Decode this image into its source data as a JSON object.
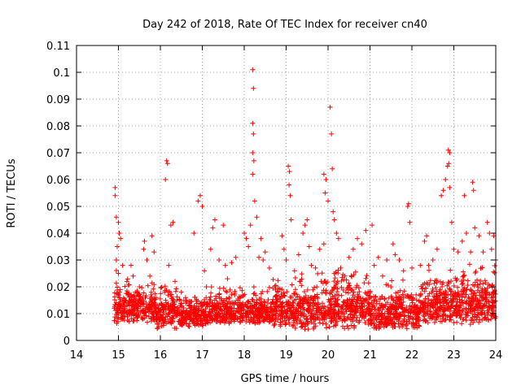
{
  "chart_data": {
    "type": "scatter",
    "title": "Day 242 of 2018, Rate Of TEC Index for receiver cn40",
    "xlabel": "GPS time / hours",
    "ylabel": "ROTI / TECUs",
    "xlim": [
      14,
      24
    ],
    "ylim": [
      0,
      0.11
    ],
    "xticks": [
      "14",
      "15",
      "16",
      "17",
      "18",
      "19",
      "20",
      "21",
      "22",
      "23",
      "24"
    ],
    "yticks": [
      "0",
      "0.01",
      "0.02",
      "0.03",
      "0.04",
      "0.05",
      "0.06",
      "0.07",
      "0.08",
      "0.09",
      "0.1",
      "0.11"
    ],
    "grid": true,
    "marker": "+",
    "series": [
      {
        "color": "#ff0000",
        "points": [
          [
            14.92,
            0.057
          ],
          [
            14.92,
            0.054
          ],
          [
            14.95,
            0.046
          ],
          [
            15.0,
            0.044
          ],
          [
            15.02,
            0.04
          ],
          [
            14.97,
            0.035
          ],
          [
            15.05,
            0.038
          ],
          [
            14.95,
            0.03
          ],
          [
            15.1,
            0.028
          ],
          [
            15.0,
            0.025
          ],
          [
            15.03,
            0.018
          ],
          [
            15.06,
            0.013
          ],
          [
            14.96,
            0.012
          ],
          [
            15.08,
            0.01
          ],
          [
            15.1,
            0.008
          ],
          [
            15.15,
            0.015
          ],
          [
            15.2,
            0.022
          ],
          [
            15.25,
            0.014
          ],
          [
            15.3,
            0.028
          ],
          [
            15.35,
            0.024
          ],
          [
            15.4,
            0.018
          ],
          [
            15.45,
            0.011
          ],
          [
            15.5,
            0.02
          ],
          [
            15.55,
            0.014
          ],
          [
            15.6,
            0.034
          ],
          [
            15.62,
            0.037
          ],
          [
            15.68,
            0.03
          ],
          [
            15.75,
            0.024
          ],
          [
            15.8,
            0.039
          ],
          [
            15.85,
            0.033
          ],
          [
            15.9,
            0.016
          ],
          [
            15.95,
            0.012
          ],
          [
            16.05,
            0.013
          ],
          [
            16.1,
            0.018
          ],
          [
            16.15,
            0.067
          ],
          [
            16.17,
            0.066
          ],
          [
            16.12,
            0.06
          ],
          [
            16.2,
            0.028
          ],
          [
            16.25,
            0.043
          ],
          [
            16.3,
            0.044
          ],
          [
            16.35,
            0.022
          ],
          [
            16.4,
            0.012
          ],
          [
            16.45,
            0.015
          ],
          [
            16.5,
            0.018
          ],
          [
            16.55,
            0.011
          ],
          [
            16.6,
            0.016
          ],
          [
            16.7,
            0.012
          ],
          [
            16.8,
            0.04
          ],
          [
            16.9,
            0.052
          ],
          [
            16.95,
            0.054
          ],
          [
            17.0,
            0.05
          ],
          [
            17.05,
            0.026
          ],
          [
            17.1,
            0.02
          ],
          [
            17.2,
            0.034
          ],
          [
            17.25,
            0.042
          ],
          [
            17.3,
            0.045
          ],
          [
            17.4,
            0.03
          ],
          [
            17.5,
            0.043
          ],
          [
            17.55,
            0.028
          ],
          [
            17.6,
            0.023
          ],
          [
            17.7,
            0.029
          ],
          [
            17.8,
            0.031
          ],
          [
            17.85,
            0.015
          ],
          [
            17.9,
            0.012
          ],
          [
            18.0,
            0.04
          ],
          [
            18.05,
            0.038
          ],
          [
            18.1,
            0.035
          ],
          [
            18.15,
            0.043
          ],
          [
            18.2,
            0.101
          ],
          [
            18.22,
            0.094
          ],
          [
            18.2,
            0.081
          ],
          [
            18.22,
            0.077
          ],
          [
            18.2,
            0.07
          ],
          [
            18.23,
            0.067
          ],
          [
            18.2,
            0.062
          ],
          [
            18.25,
            0.052
          ],
          [
            18.3,
            0.046
          ],
          [
            18.35,
            0.031
          ],
          [
            18.4,
            0.038
          ],
          [
            18.45,
            0.03
          ],
          [
            18.5,
            0.033
          ],
          [
            18.6,
            0.027
          ],
          [
            18.7,
            0.014
          ],
          [
            18.8,
            0.018
          ],
          [
            18.9,
            0.039
          ],
          [
            18.95,
            0.034
          ],
          [
            19.0,
            0.03
          ],
          [
            19.05,
            0.065
          ],
          [
            19.08,
            0.063
          ],
          [
            19.07,
            0.058
          ],
          [
            19.1,
            0.054
          ],
          [
            19.12,
            0.045
          ],
          [
            19.2,
            0.026
          ],
          [
            19.3,
            0.032
          ],
          [
            19.4,
            0.04
          ],
          [
            19.45,
            0.043
          ],
          [
            19.5,
            0.045
          ],
          [
            19.55,
            0.035
          ],
          [
            19.6,
            0.028
          ],
          [
            19.7,
            0.027
          ],
          [
            19.8,
            0.034
          ],
          [
            19.9,
            0.036
          ],
          [
            19.9,
            0.062
          ],
          [
            19.95,
            0.06
          ],
          [
            19.93,
            0.055
          ],
          [
            20.0,
            0.052
          ],
          [
            20.05,
            0.087
          ],
          [
            20.08,
            0.077
          ],
          [
            20.1,
            0.064
          ],
          [
            20.12,
            0.048
          ],
          [
            20.15,
            0.045
          ],
          [
            20.2,
            0.04
          ],
          [
            20.25,
            0.038
          ],
          [
            20.3,
            0.027
          ],
          [
            20.4,
            0.024
          ],
          [
            20.5,
            0.031
          ],
          [
            20.6,
            0.034
          ],
          [
            20.7,
            0.038
          ],
          [
            20.8,
            0.036
          ],
          [
            20.9,
            0.041
          ],
          [
            21.0,
            0.016
          ],
          [
            21.05,
            0.043
          ],
          [
            21.1,
            0.028
          ],
          [
            21.2,
            0.031
          ],
          [
            21.3,
            0.024
          ],
          [
            21.4,
            0.03
          ],
          [
            21.5,
            0.02
          ],
          [
            21.55,
            0.036
          ],
          [
            21.6,
            0.032
          ],
          [
            21.7,
            0.03
          ],
          [
            21.8,
            0.026
          ],
          [
            21.9,
            0.05
          ],
          [
            21.92,
            0.051
          ],
          [
            21.95,
            0.044
          ],
          [
            22.0,
            0.027
          ],
          [
            22.1,
            0.017
          ],
          [
            22.2,
            0.028
          ],
          [
            22.3,
            0.037
          ],
          [
            22.35,
            0.039
          ],
          [
            22.4,
            0.028
          ],
          [
            22.5,
            0.03
          ],
          [
            22.6,
            0.034
          ],
          [
            22.7,
            0.054
          ],
          [
            22.75,
            0.056
          ],
          [
            22.8,
            0.06
          ],
          [
            22.85,
            0.065
          ],
          [
            22.87,
            0.071
          ],
          [
            22.9,
            0.07
          ],
          [
            22.88,
            0.066
          ],
          [
            22.9,
            0.057
          ],
          [
            22.95,
            0.044
          ],
          [
            23.0,
            0.034
          ],
          [
            23.1,
            0.033
          ],
          [
            23.2,
            0.037
          ],
          [
            23.25,
            0.054
          ],
          [
            23.3,
            0.04
          ],
          [
            23.4,
            0.033
          ],
          [
            23.45,
            0.059
          ],
          [
            23.47,
            0.056
          ],
          [
            23.5,
            0.042
          ],
          [
            23.6,
            0.039
          ],
          [
            23.7,
            0.033
          ],
          [
            23.8,
            0.044
          ],
          [
            23.85,
            0.04
          ],
          [
            23.9,
            0.034
          ],
          [
            23.95,
            0.039
          ],
          [
            24.0,
            0.03
          ]
        ],
        "bands": [
          {
            "x": [
              14.9,
              15.3
            ],
            "y": [
              0.006,
              0.028
            ]
          },
          {
            "x": [
              15.3,
              15.9
            ],
            "y": [
              0.006,
              0.025
            ]
          },
          {
            "x": [
              15.9,
              16.4
            ],
            "y": [
              0.004,
              0.025
            ]
          },
          {
            "x": [
              16.4,
              17.2
            ],
            "y": [
              0.005,
              0.02
            ]
          },
          {
            "x": [
              17.2,
              17.9
            ],
            "y": [
              0.006,
              0.022
            ]
          },
          {
            "x": [
              17.9,
              18.6
            ],
            "y": [
              0.006,
              0.022
            ]
          },
          {
            "x": [
              18.6,
              19.2
            ],
            "y": [
              0.005,
              0.026
            ]
          },
          {
            "x": [
              19.2,
              20.2
            ],
            "y": [
              0.004,
              0.03
            ]
          },
          {
            "x": [
              20.2,
              21.0
            ],
            "y": [
              0.004,
              0.03
            ]
          },
          {
            "x": [
              21.0,
              21.6
            ],
            "y": [
              0.004,
              0.024
            ]
          },
          {
            "x": [
              21.6,
              22.2
            ],
            "y": [
              0.004,
              0.024
            ]
          },
          {
            "x": [
              22.2,
              23.0
            ],
            "y": [
              0.006,
              0.03
            ]
          },
          {
            "x": [
              23.0,
              24.0
            ],
            "y": [
              0.006,
              0.032
            ]
          }
        ],
        "band_point_count": 2600
      }
    ]
  }
}
